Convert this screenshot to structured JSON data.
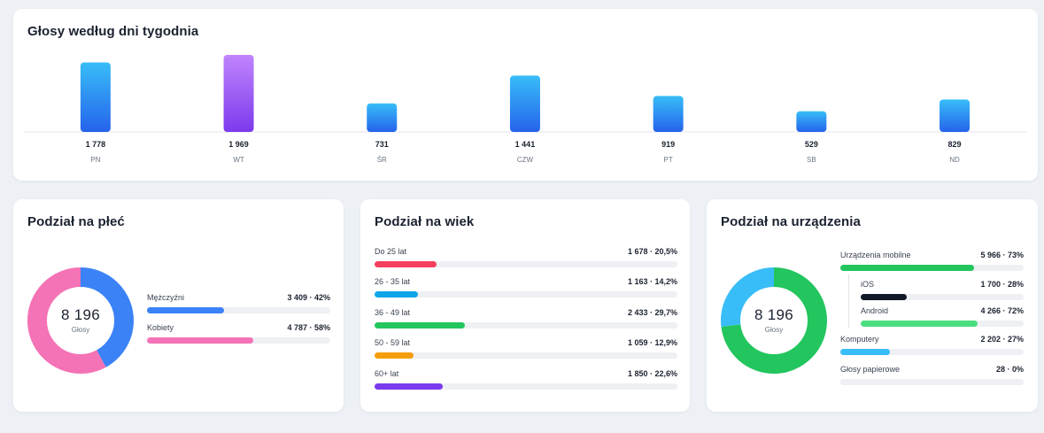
{
  "weekly": {
    "title": "Głosy według dni tygodnia",
    "days": [
      {
        "day": "PN",
        "votes": 1778,
        "label": "1 778",
        "highlight": false
      },
      {
        "day": "WT",
        "votes": 1969,
        "label": "1 969",
        "highlight": true
      },
      {
        "day": "ŚR",
        "votes": 731,
        "label": "731",
        "highlight": false
      },
      {
        "day": "CZW",
        "votes": 1441,
        "label": "1 441",
        "highlight": false
      },
      {
        "day": "PT",
        "votes": 919,
        "label": "919",
        "highlight": false
      },
      {
        "day": "SB",
        "votes": 529,
        "label": "529",
        "highlight": false
      },
      {
        "day": "ND",
        "votes": 829,
        "label": "829",
        "highlight": false
      }
    ],
    "colors": {
      "bar_top": "#38bdf8",
      "bar_bottom": "#2563eb",
      "highlight_top": "#c084fc",
      "highlight_bottom": "#7c3aed"
    }
  },
  "gender": {
    "title": "Podział na płeć",
    "total": "8 196",
    "total_caption": "Głosy",
    "items": [
      {
        "label": "Mężczyźni",
        "value": "3 409 · 42%",
        "share": 0.42,
        "color": "#3b82f6"
      },
      {
        "label": "Kobiety",
        "value": "4 787 · 58%",
        "share": 0.58,
        "color": "#f472b6"
      }
    ]
  },
  "age": {
    "title": "Podział na wiek",
    "items": [
      {
        "label": "Do 25 lat",
        "value": "1 678 · 20,5%",
        "share": 0.205,
        "color": "#f43f5e"
      },
      {
        "label": "26 - 35 lat",
        "value": "1 163 · 14,2%",
        "share": 0.142,
        "color": "#0ea5e9"
      },
      {
        "label": "36 - 49 lat",
        "value": "2 433 · 29,7%",
        "share": 0.297,
        "color": "#22c55e"
      },
      {
        "label": "50 - 59 lat",
        "value": "1 059 · 12,9%",
        "share": 0.129,
        "color": "#f59e0b"
      },
      {
        "label": "60+ lat",
        "value": "1 850 · 22,6%",
        "share": 0.226,
        "color": "#7c3aed"
      }
    ]
  },
  "devices": {
    "title": "Podział na urządzenia",
    "total": "8 196",
    "total_caption": "Głosy",
    "mobile": {
      "label": "Urządzenia mobilne",
      "value": "5 966 · 73%",
      "share": 0.73,
      "color": "#22c55e"
    },
    "ios": {
      "label": "iOS",
      "value": "1 700 · 28%",
      "share": 0.28,
      "color": "#111827"
    },
    "android": {
      "label": "Android",
      "value": "4 266 · 72%",
      "share": 0.72,
      "color": "#4ade80"
    },
    "computers": {
      "label": "Komputery",
      "value": "2 202 · 27%",
      "share": 0.27,
      "color": "#38bdf8"
    },
    "paper": {
      "label": "Głosy papierowe",
      "value": "28 · 0%",
      "share": 0.0,
      "color": "#94a3b8"
    }
  }
}
